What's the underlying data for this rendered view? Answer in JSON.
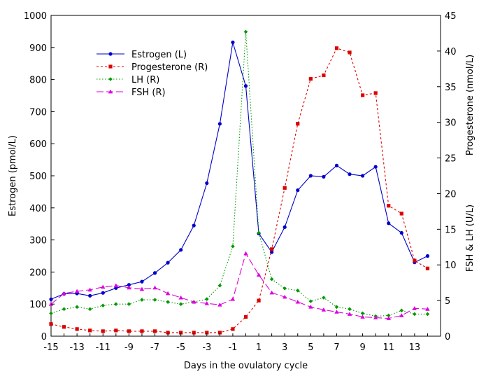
{
  "chart_data": {
    "type": "line",
    "xlabel": "Days in the ovulatory cycle",
    "ylabel_left": "Estrogen (pmol/L)",
    "ylabel_right_top": "Progesterone (nmol/L)",
    "ylabel_right_bottom": "FSH & LH (U/L)",
    "xlim": [
      -15,
      15
    ],
    "ylim_left": [
      0,
      1000
    ],
    "ylim_right": [
      0,
      45
    ],
    "x_ticks": [
      -15,
      -13,
      -11,
      -9,
      -7,
      -5,
      -3,
      -1,
      1,
      3,
      5,
      7,
      9,
      11,
      13
    ],
    "y_ticks_left": [
      0,
      100,
      200,
      300,
      400,
      500,
      600,
      700,
      800,
      900,
      1000
    ],
    "y_ticks_right": [
      0,
      5,
      10,
      15,
      20,
      25,
      30,
      35,
      40,
      45
    ],
    "grid": false,
    "legend_position": "top-left",
    "x": [
      -15,
      -14,
      -13,
      -12,
      -11,
      -10,
      -9,
      -8,
      -7,
      -6,
      -5,
      -4,
      -3,
      -2,
      -1,
      0,
      1,
      2,
      3,
      4,
      5,
      6,
      7,
      8,
      9,
      10,
      11,
      12,
      13,
      14
    ],
    "series": [
      {
        "name": "Estrogen (L)",
        "axis": "left",
        "color": "#0000cc",
        "marker": "circle",
        "dash": "",
        "values": [
          115,
          132,
          133,
          126,
          135,
          150,
          160,
          170,
          197,
          229,
          269,
          345,
          477,
          662,
          916,
          780,
          320,
          262,
          340,
          455,
          500,
          497,
          532,
          505,
          500,
          528,
          352,
          322,
          230,
          250
        ]
      },
      {
        "name": "Progesterone (R)",
        "axis": "right",
        "color": "#dd0000",
        "marker": "square",
        "dash": "3,3",
        "values": [
          1.7,
          1.3,
          1.0,
          0.8,
          0.7,
          0.8,
          0.7,
          0.7,
          0.7,
          0.5,
          0.5,
          0.5,
          0.5,
          0.5,
          1.0,
          2.7,
          5.0,
          12.2,
          20.8,
          29.8,
          36.1,
          36.6,
          40.4,
          39.8,
          33.8,
          34.1,
          18.3,
          17.2,
          10.6,
          9.5
        ]
      },
      {
        "name": "LH (R)",
        "axis": "right",
        "color": "#009900",
        "marker": "diamond",
        "dash": "1.5,2.5",
        "values": [
          3.2,
          3.8,
          4.1,
          3.8,
          4.3,
          4.5,
          4.5,
          5.1,
          5.1,
          4.8,
          4.5,
          4.8,
          5.2,
          7.1,
          12.6,
          42.7,
          14.5,
          8.0,
          6.7,
          6.4,
          4.9,
          5.4,
          4.1,
          3.8,
          3.2,
          2.8,
          2.9,
          3.6,
          3.1,
          3.1
        ]
      },
      {
        "name": "FSH (R)",
        "axis": "right",
        "color": "#dd00dd",
        "marker": "triangle",
        "dash": "10,4",
        "values": [
          4.5,
          6.0,
          6.3,
          6.5,
          6.9,
          7.1,
          6.8,
          6.6,
          6.8,
          6.0,
          5.4,
          4.8,
          4.6,
          4.4,
          5.2,
          11.6,
          8.6,
          6.1,
          5.5,
          4.8,
          4.1,
          3.7,
          3.4,
          3.1,
          2.7,
          2.6,
          2.5,
          2.9,
          3.9,
          3.8
        ]
      }
    ]
  }
}
